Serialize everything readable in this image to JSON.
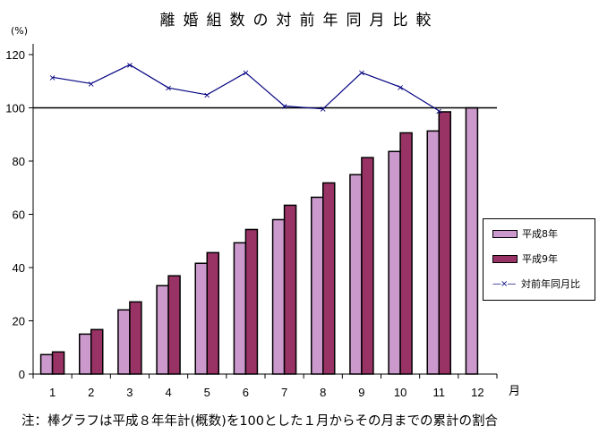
{
  "chart_data": {
    "type": "bar",
    "title": "離婚組数の対前年同月比較",
    "ylabel": "(%)",
    "xlabel": "月",
    "ylim": [
      0,
      120
    ],
    "yticks": [
      0,
      20,
      40,
      60,
      80,
      100,
      120
    ],
    "categories": [
      "1",
      "2",
      "3",
      "4",
      "5",
      "6",
      "7",
      "8",
      "9",
      "10",
      "11",
      "12"
    ],
    "series": [
      {
        "name": "平成8年",
        "type": "bar",
        "color": "#cc99cc",
        "values": [
          7.3,
          15.0,
          24.1,
          33.2,
          41.6,
          49.3,
          58.0,
          66.4,
          74.9,
          83.6,
          91.3,
          100.0
        ]
      },
      {
        "name": "平成9年",
        "type": "bar",
        "color": "#993366",
        "values": [
          8.3,
          16.7,
          27.1,
          36.9,
          45.6,
          54.3,
          63.4,
          71.8,
          81.3,
          90.6,
          98.5,
          null
        ]
      },
      {
        "name": "対前年同月比",
        "type": "line",
        "color": "#000080",
        "marker": "x",
        "values": [
          111.5,
          109.1,
          116.2,
          107.5,
          104.9,
          113.2,
          100.7,
          99.6,
          113.2,
          107.8,
          98.9,
          null
        ]
      }
    ],
    "reference_line": 100,
    "legend_position": "right",
    "grid": false,
    "note": "注：棒グラフは平成８年年計(概数)を100とした１月からその月までの累計の割合"
  },
  "header": {
    "title": "離婚組数の対前年同月比較",
    "unit": "(%)"
  },
  "legend": {
    "items": [
      {
        "label": "平成8年"
      },
      {
        "label": "平成9年"
      },
      {
        "label": "対前年同月比",
        "symbol": "—×—"
      }
    ]
  },
  "footer": {
    "note": "注：棒グラフは平成８年年計(概数)を100とした１月からその月までの累計の割合"
  }
}
